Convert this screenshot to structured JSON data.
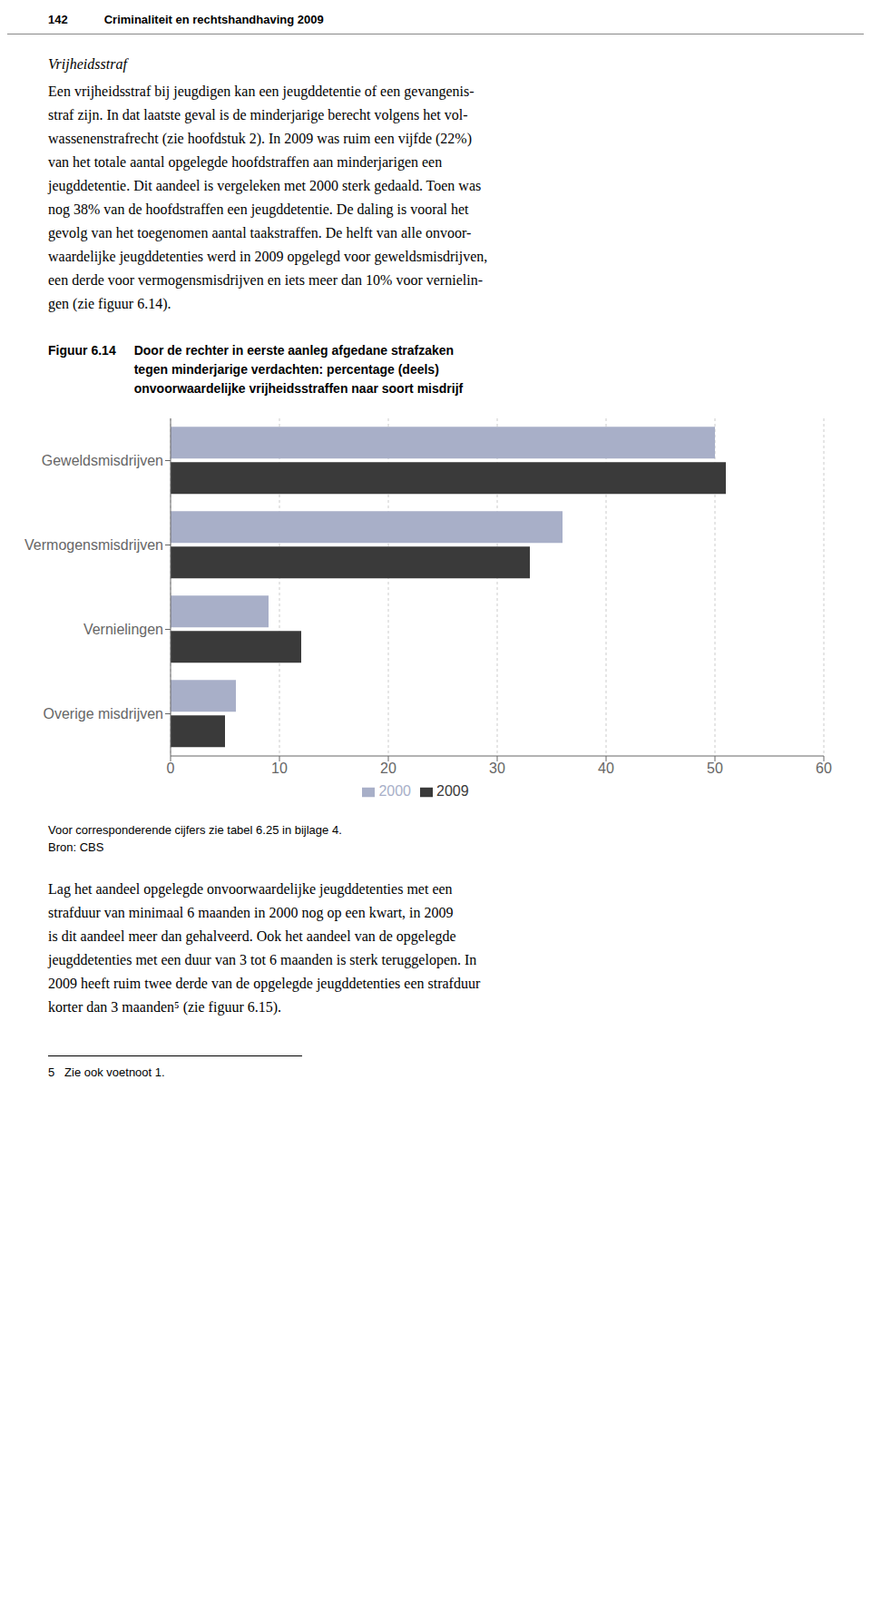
{
  "header": {
    "number": "142",
    "text": "Criminaliteit en rechtshandhaving 2009"
  },
  "section_title": "Vrijheidsstraf",
  "body1": [
    "Een vrijheidsstraf bij jeugdigen kan een jeugddetentie of een gevangenis-",
    "straf zijn. In dat laatste geval is de minderjarige berecht volgens het vol-",
    "wassenenstrafrecht (zie hoofdstuk 2). In 2009 was ruim een vijfde (22%)",
    "van het totale aantal opgelegde hoofdstraffen aan minderjarigen een",
    "jeugddetentie. Dit aandeel is vergeleken met 2000 sterk gedaald. Toen was",
    "nog 38% van de hoofdstraffen een jeugddetentie. De daling is vooral het",
    "gevolg van het toegenomen aantal taakstraffen. De helft van alle onvoor-",
    "waardelijke jeugddetenties werd in 2009 opgelegd voor geweldsmisdrijven,",
    "een derde voor vermogensmisdrijven en iets meer dan 10% voor vernielin-",
    "gen (zie figuur 6.14)."
  ],
  "chart_data": {
    "type": "bar",
    "orientation": "horizontal",
    "title_label": "Figuur 6.14",
    "title": "Door de rechter in eerste aanleg afgedane strafzaken\ntegen minderjarige verdachten: percentage (deels)\nonvoorwaardelijke vrijheidsstraffen naar soort misdrijf",
    "categories": [
      "Geweldsmisdrijven",
      "Vermogensmisdrijven",
      "Vernielingen",
      "Overige misdrijven"
    ],
    "series": [
      {
        "name": "2000",
        "color": "#a8afc8",
        "values": [
          50,
          36,
          9,
          6
        ]
      },
      {
        "name": "2009",
        "color": "#3a3a3a",
        "values": [
          51,
          33,
          12,
          5
        ]
      }
    ],
    "xlim": [
      0,
      60
    ],
    "xticks": [
      0,
      10,
      20,
      30,
      40,
      50,
      60
    ],
    "grid": true,
    "legend": "bottom"
  },
  "footnotes": [
    "Voor corresponderende cijfers zie tabel 6.25 in bijlage 4.",
    "Bron: CBS"
  ],
  "body2": [
    "Lag het aandeel opgelegde onvoorwaardelijke jeugddetenties met een",
    "strafduur van minimaal 6 maanden in 2000 nog op een kwart, in 2009",
    "is dit aandeel meer dan gehalveerd. Ook het aandeel van de opgelegde",
    "jeugddetenties met een duur van 3 tot 6 maanden is sterk teruggelopen. In",
    "2009 heeft ruim twee derde van de opgelegde jeugddetenties een strafduur",
    "korter dan 3 maanden⁵ (zie figuur 6.15)."
  ],
  "footnote2": "5   Zie ook voetnoot 1."
}
